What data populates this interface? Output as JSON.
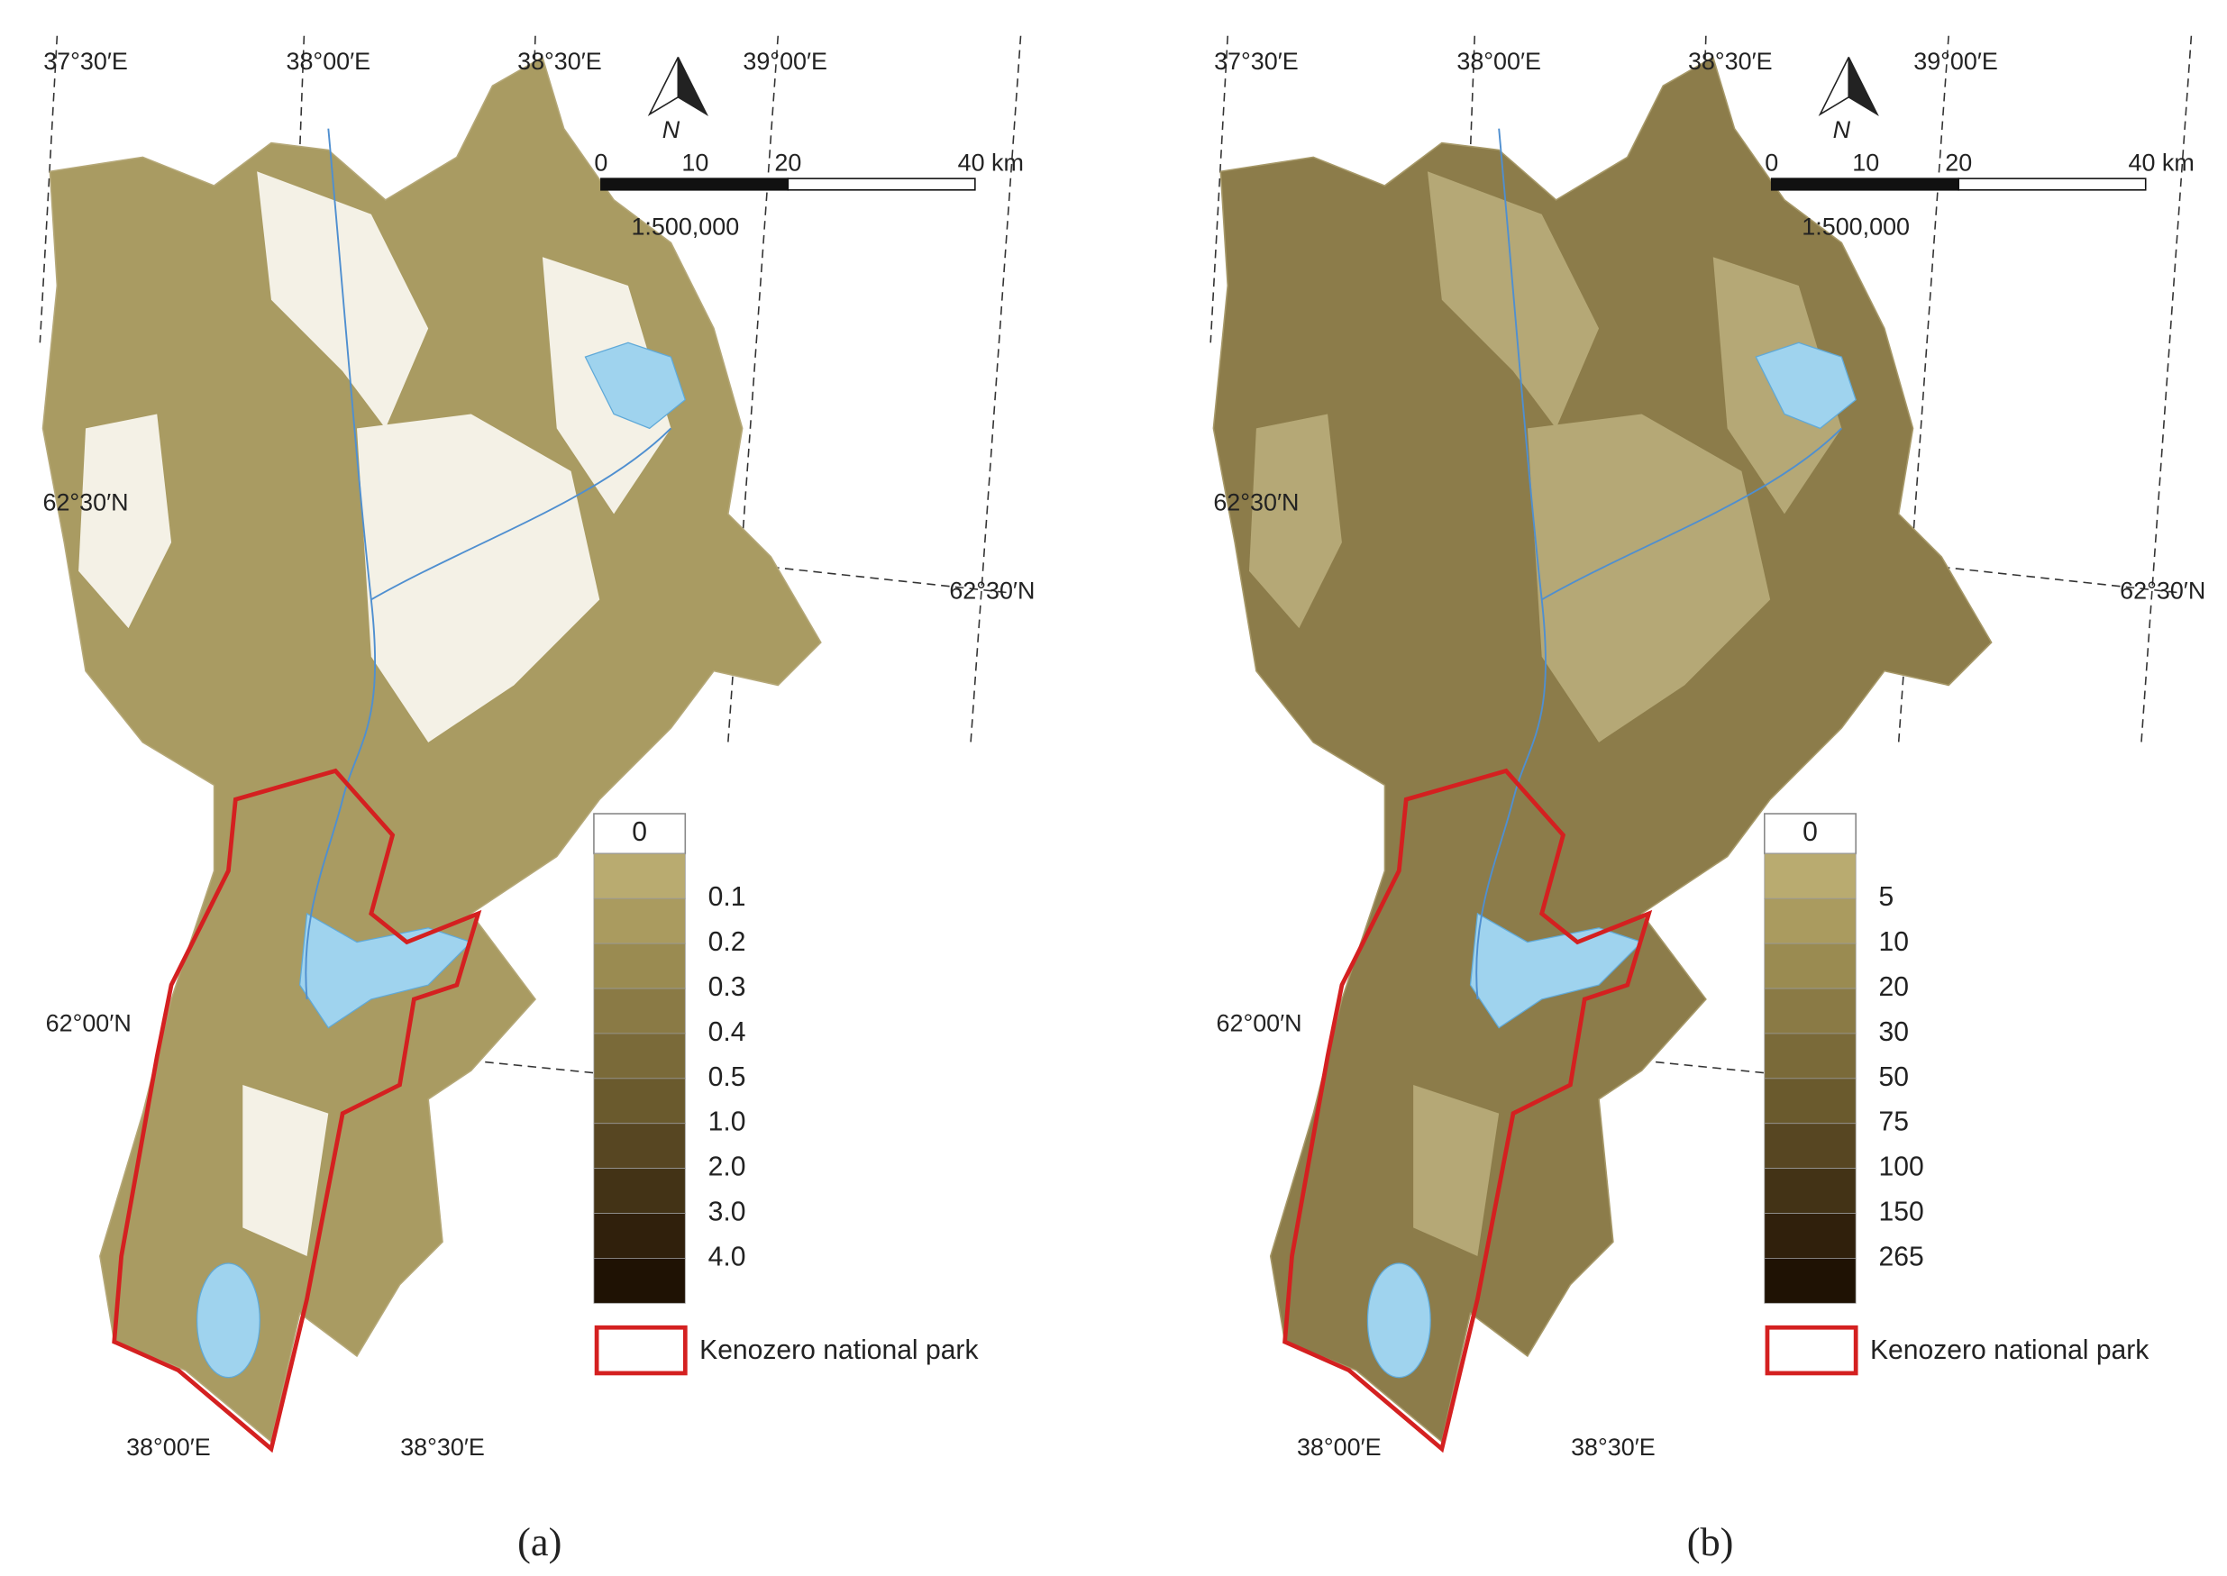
{
  "panels": [
    {
      "caption": "(a)",
      "lon_labels_top": [
        "37°30′E",
        "38°00′E",
        "38°30′E",
        "39°00′E"
      ],
      "lat_labels": [
        "62°30′N",
        "62°30′N",
        "62°00′N"
      ],
      "lon_labels_bottom": [
        "38°00′E",
        "38°30′E"
      ],
      "north": "N",
      "scale": {
        "ticks": [
          "0",
          "10",
          "20",
          "40 km"
        ],
        "ratio": "1:500,000"
      },
      "legend": {
        "zero": "0",
        "breaks": [
          "0.1",
          "0.2",
          "0.3",
          "0.4",
          "0.5",
          "1.0",
          "2.0",
          "3.0",
          "4.0"
        ],
        "colors": [
          "#ffffff",
          "#b9ab70",
          "#aa9b5f",
          "#9a8b51",
          "#8a7a45",
          "#7a6a39",
          "#6a5a2d",
          "#574622",
          "#433316",
          "#30200c",
          "#1f1204"
        ],
        "park": "Kenozero national park"
      }
    },
    {
      "caption": "(b)",
      "lon_labels_top": [
        "37°30′E",
        "38°00′E",
        "38°30′E",
        "39°00′E"
      ],
      "lat_labels": [
        "62°30′N",
        "62°30′N",
        "62°00′N"
      ],
      "lon_labels_bottom": [
        "38°00′E",
        "38°30′E"
      ],
      "north": "N",
      "scale": {
        "ticks": [
          "0",
          "10",
          "20",
          "40 km"
        ],
        "ratio": "1:500,000"
      },
      "legend": {
        "zero": "0",
        "breaks": [
          "5",
          "10",
          "20",
          "30",
          "50",
          "75",
          "100",
          "150",
          "265"
        ],
        "colors": [
          "#ffffff",
          "#b9ab70",
          "#aa9b5f",
          "#9a8b51",
          "#8a7a45",
          "#7a6a39",
          "#6a5a2d",
          "#574622",
          "#433316",
          "#30200c",
          "#1f1204"
        ],
        "park": "Kenozero national park"
      }
    }
  ]
}
